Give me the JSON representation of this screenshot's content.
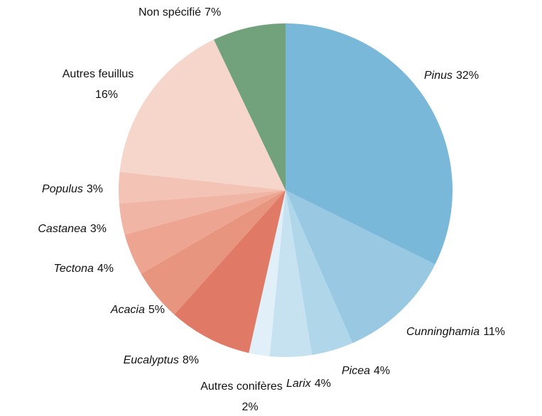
{
  "chart_data": {
    "type": "pie",
    "categories": [
      "Pinus",
      "Cunninghamia",
      "Picea",
      "Larix",
      "Autres conifères",
      "Eucalyptus",
      "Acacia",
      "Tectona",
      "Castanea",
      "Populus",
      "Autres feuillus",
      "Non spécifié"
    ],
    "values": [
      32,
      11,
      4,
      4,
      2,
      8,
      5,
      4,
      3,
      3,
      16,
      7
    ],
    "value_labels": [
      "32%",
      "11%",
      "4%",
      "4%",
      "2%",
      "8%",
      "5%",
      "4%",
      "3%",
      "3%",
      "16%",
      "7%"
    ],
    "colors": [
      "#7ab8d9",
      "#98c8e2",
      "#b0d6ea",
      "#c6e2f1",
      "#e0eff8",
      "#e07a66",
      "#e8957f",
      "#eda592",
      "#f0b5a5",
      "#f3c3b6",
      "#f6d5ca",
      "#72a27c"
    ],
    "label_style": [
      "italic",
      "italic",
      "italic",
      "italic",
      "normal",
      "italic",
      "italic",
      "italic",
      "italic",
      "italic",
      "normal",
      "normal"
    ]
  }
}
